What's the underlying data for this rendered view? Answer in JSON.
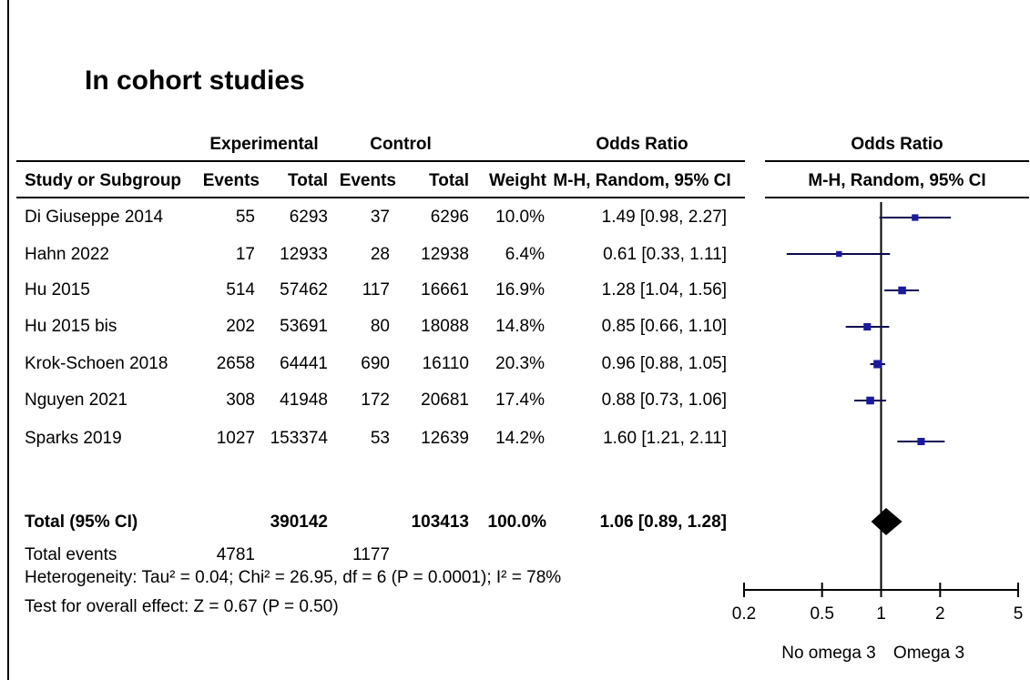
{
  "title": "In cohort studies",
  "headers": {
    "experimental": "Experimental",
    "control": "Control",
    "or_text": "Odds Ratio",
    "or_plot": "Odds Ratio",
    "study": "Study or Subgroup",
    "events": "Events",
    "total": "Total",
    "weight": "Weight",
    "method_text": "M-H, Random, 95% CI",
    "method_plot": "M-H, Random, 95% CI"
  },
  "rows": [
    {
      "study": "Di Giuseppe 2014",
      "exp_events": "55",
      "exp_total": "6293",
      "ctl_events": "37",
      "ctl_total": "6296",
      "weight": "10.0%",
      "or_text": "1.49 [0.98, 2.27]"
    },
    {
      "study": "Hahn 2022",
      "exp_events": "17",
      "exp_total": "12933",
      "ctl_events": "28",
      "ctl_total": "12938",
      "weight": "6.4%",
      "or_text": "0.61 [0.33, 1.11]"
    },
    {
      "study": "Hu 2015",
      "exp_events": "514",
      "exp_total": "57462",
      "ctl_events": "117",
      "ctl_total": "16661",
      "weight": "16.9%",
      "or_text": "1.28 [1.04, 1.56]"
    },
    {
      "study": "Hu 2015 bis",
      "exp_events": "202",
      "exp_total": "53691",
      "ctl_events": "80",
      "ctl_total": "18088",
      "weight": "14.8%",
      "or_text": "0.85 [0.66, 1.10]"
    },
    {
      "study": "Krok-Schoen 2018",
      "exp_events": "2658",
      "exp_total": "64441",
      "ctl_events": "690",
      "ctl_total": "16110",
      "weight": "20.3%",
      "or_text": "0.96 [0.88, 1.05]"
    },
    {
      "study": "Nguyen 2021",
      "exp_events": "308",
      "exp_total": "41948",
      "ctl_events": "172",
      "ctl_total": "20681",
      "weight": "17.4%",
      "or_text": "0.88 [0.73, 1.06]"
    },
    {
      "study": "Sparks 2019",
      "exp_events": "1027",
      "exp_total": "153374",
      "ctl_events": "53",
      "ctl_total": "12639",
      "weight": "14.2%",
      "or_text": "1.60 [1.21, 2.11]"
    }
  ],
  "total": {
    "label": "Total (95% CI)",
    "exp_total": "390142",
    "ctl_total": "103413",
    "weight": "100.0%",
    "or_text": "1.06 [0.89, 1.28]"
  },
  "events": {
    "label": "Total events",
    "exp": "4781",
    "ctl": "1177"
  },
  "heterogeneity": "Heterogeneity: Tau² = 0.04; Chi² = 26.95, df = 6 (P = 0.0001); I² = 78%",
  "overall_effect": "Test for overall effect: Z = 0.67 (P = 0.50)",
  "axis_labels": {
    "left": "No omega 3",
    "right": "Omega 3"
  },
  "colors": {
    "marker": "#1a1aa0",
    "line": "#0a0a50",
    "diamond": "#000000"
  },
  "chart_data": {
    "type": "forest",
    "title": "In cohort studies",
    "scale": "log",
    "xlim": [
      0.2,
      5
    ],
    "ticks": [
      0.2,
      0.5,
      1,
      2,
      5
    ],
    "tick_labels": [
      "0.2",
      "0.5",
      "1",
      "2",
      "5"
    ],
    "reference_line": 1,
    "xlabel_left": "No omega 3",
    "xlabel_right": "Omega 3",
    "studies": [
      {
        "name": "Di Giuseppe 2014",
        "or": 1.49,
        "lo": 0.98,
        "hi": 2.27,
        "weight": 10.0
      },
      {
        "name": "Hahn 2022",
        "or": 0.61,
        "lo": 0.33,
        "hi": 1.11,
        "weight": 6.4
      },
      {
        "name": "Hu 2015",
        "or": 1.28,
        "lo": 1.04,
        "hi": 1.56,
        "weight": 16.9
      },
      {
        "name": "Hu 2015 bis",
        "or": 0.85,
        "lo": 0.66,
        "hi": 1.1,
        "weight": 14.8
      },
      {
        "name": "Krok-Schoen 2018",
        "or": 0.96,
        "lo": 0.88,
        "hi": 1.05,
        "weight": 20.3
      },
      {
        "name": "Nguyen 2021",
        "or": 0.88,
        "lo": 0.73,
        "hi": 1.06,
        "weight": 17.4
      },
      {
        "name": "Sparks 2019",
        "or": 1.6,
        "lo": 1.21,
        "hi": 2.11,
        "weight": 14.2
      }
    ],
    "pooled": {
      "or": 1.06,
      "lo": 0.89,
      "hi": 1.28
    }
  }
}
